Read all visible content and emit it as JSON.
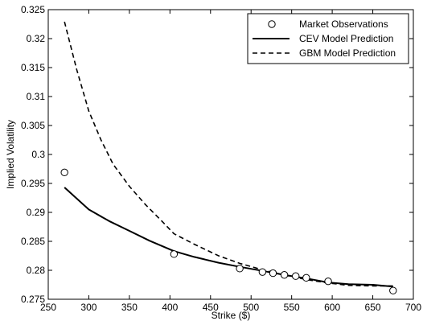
{
  "chart_data": {
    "type": "line",
    "title": "",
    "xlabel": "Strike ($)",
    "ylabel": "Implied Volatility",
    "xlim": [
      250,
      700
    ],
    "ylim": [
      0.275,
      0.325
    ],
    "xticks": [
      250,
      300,
      350,
      400,
      450,
      500,
      550,
      600,
      650,
      700
    ],
    "yticks": [
      0.275,
      0.28,
      0.285,
      0.29,
      0.295,
      0.3,
      0.305,
      0.31,
      0.315,
      0.32,
      0.325
    ],
    "xtick_labels": [
      "250",
      "300",
      "350",
      "400",
      "450",
      "500",
      "550",
      "600",
      "650",
      "700"
    ],
    "ytick_labels": [
      "0.275",
      "0.28",
      "0.285",
      "0.29",
      "0.295",
      "0.3",
      "0.305",
      "0.31",
      "0.315",
      "0.32",
      "0.325"
    ],
    "grid": false,
    "legend_position": "top-right",
    "series": [
      {
        "name": "Market Observations",
        "style": "markers",
        "marker": "open-circle",
        "x": [
          270,
          405,
          486,
          514,
          527,
          541,
          555,
          568,
          595,
          675
        ],
        "y": [
          0.2969,
          0.2828,
          0.2803,
          0.2797,
          0.2795,
          0.2792,
          0.279,
          0.2787,
          0.2781,
          0.2765
        ]
      },
      {
        "name": "CEV Model Prediction",
        "style": "solid",
        "x": [
          270,
          300,
          325,
          350,
          375,
          405,
          430,
          460,
          486,
          514,
          541,
          568,
          595,
          620,
          650,
          675
        ],
        "y": [
          0.2943,
          0.2905,
          0.2885,
          0.2868,
          0.2851,
          0.2833,
          0.2823,
          0.2813,
          0.2806,
          0.2799,
          0.2792,
          0.2786,
          0.2779,
          0.2776,
          0.2775,
          0.2772
        ]
      },
      {
        "name": "GBM Model Prediction",
        "style": "dashed",
        "x": [
          270,
          285,
          300,
          315,
          330,
          350,
          370,
          390,
          405,
          430,
          460,
          486,
          514,
          541,
          568,
          595,
          620,
          650,
          675
        ],
        "y": [
          0.3229,
          0.3147,
          0.3075,
          0.3025,
          0.2983,
          0.2945,
          0.2913,
          0.2885,
          0.2863,
          0.2845,
          0.2825,
          0.2812,
          0.2801,
          0.2792,
          0.2784,
          0.2778,
          0.2774,
          0.2773,
          0.2773
        ]
      }
    ]
  }
}
